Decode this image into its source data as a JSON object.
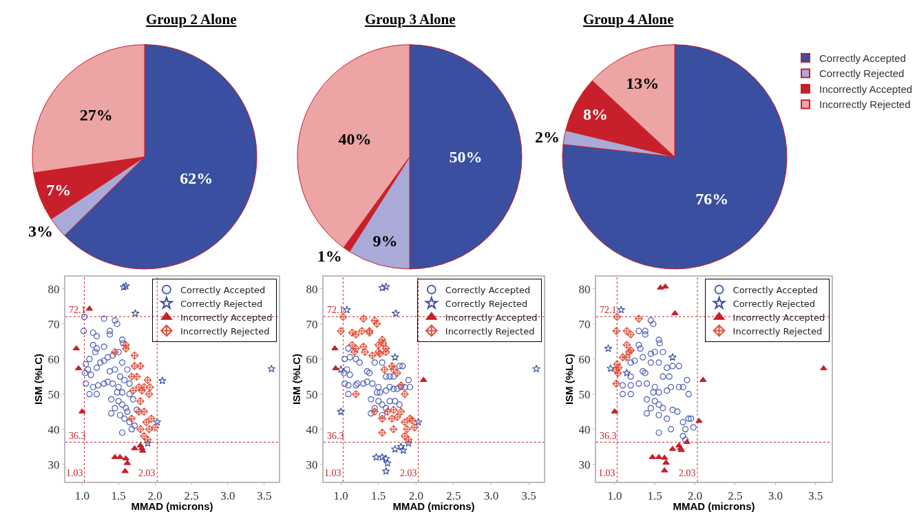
{
  "chart_data": [
    {
      "type": "pie",
      "title": "Group 2 Alone",
      "categories": [
        null,
        null,
        null,
        null
      ],
      "values": [
        62,
        3,
        7,
        27
      ],
      "colors": [
        "#3a4fa0",
        "#a9aad8",
        "#c8202a",
        "#eca4a4"
      ],
      "value_labels": [
        "62%",
        "3%",
        "7%",
        "27%"
      ]
    },
    {
      "type": "pie",
      "title": "Group 3 Alone",
      "categories": [
        null,
        null,
        null,
        null
      ],
      "values": [
        50,
        9,
        1,
        40
      ],
      "colors": [
        "#3a4fa0",
        "#a9aad8",
        "#c8202a",
        "#eca4a4"
      ],
      "value_labels": [
        "50%",
        "9%",
        "1%",
        "40%"
      ]
    },
    {
      "type": "pie",
      "title": "Group 4 Alone",
      "categories": [
        "Correctly Accepted",
        "Correctly Rejected",
        "Incorrectly Accepted",
        "Incorrectly Rejected"
      ],
      "values": [
        76,
        2,
        8,
        13
      ],
      "colors": [
        "#3a4fa0",
        "#a9aad8",
        "#c8202a",
        "#eca4a4"
      ],
      "value_labels": [
        "76%",
        "2%",
        "8%",
        "13%"
      ],
      "legend": "right"
    },
    {
      "type": "scatter",
      "xlabel": "MMAD (microns)",
      "ylabel": "ISM (%LC)",
      "xlim": [
        0.77,
        3.7
      ],
      "ylim": [
        25,
        83.5
      ],
      "xticks": [
        {
          "value": 1,
          "label": "1.0"
        },
        1.5,
        {
          "value": 2,
          "label": "2.0"
        },
        2.5,
        {
          "value": 3,
          "label": "3.0"
        },
        3.5
      ],
      "yticks": [
        30,
        40,
        50,
        60,
        70,
        80
      ],
      "legend": "top right",
      "grid": false,
      "ref_lines": [
        {
          "axis": "y",
          "value": 72.1,
          "label": "72.1",
          "color": "#c8202a",
          "line_style": "dotted"
        },
        {
          "axis": "y",
          "value": 36.3,
          "label": "36.3",
          "color": "#c8202a",
          "line_style": "dotted"
        },
        {
          "axis": "x",
          "value": 1.03,
          "label": "1.03",
          "color": "#c8202a",
          "line_style": "dotted"
        },
        {
          "axis": "x",
          "value": 2.03,
          "label": "2.03",
          "color": "#c8202a",
          "line_style": "dotted"
        }
      ],
      "series": [
        {
          "name": "Correctly Accepted",
          "color": "#4a5cb8",
          "marker": "circle",
          "x": [
            1.03,
            1.3,
            1.45,
            1.48,
            1.02,
            1.15,
            1.38,
            1.38,
            1.2,
            1.15,
            1.2,
            1.3,
            1.18,
            1.55,
            1.56,
            1.5,
            1.42,
            1.35,
            1.3,
            1.1,
            1.05,
            1.08,
            1.04,
            1.12,
            1.2,
            1.25,
            1.38,
            1.45,
            1.55,
            1.62,
            1.52,
            1.58,
            1.3,
            1.22,
            1.15,
            1.05,
            1.1,
            1.2,
            1.35,
            1.42,
            1.5,
            1.48,
            1.55,
            1.65,
            1.65,
            1.4,
            1.5,
            1.55,
            1.6,
            1.45,
            1.4,
            1.52,
            1.58,
            1.62,
            1.55,
            1.68,
            1.65,
            1.72,
            1.7,
            1.75
          ],
          "values": [
            72,
            71.5,
            71,
            70,
            68,
            67.5,
            68,
            67,
            66.5,
            64,
            63,
            63.5,
            62,
            65.5,
            64.5,
            62,
            61,
            60.5,
            59.5,
            60,
            58.5,
            57,
            56,
            55.5,
            57.5,
            59,
            56.5,
            57,
            59,
            57,
            55,
            54,
            53,
            52.5,
            52,
            53,
            50,
            50,
            53.5,
            53,
            52,
            50.5,
            50.5,
            53,
            50,
            48.5,
            48,
            47,
            46,
            46,
            44.5,
            44,
            43,
            45,
            39,
            40,
            42,
            41,
            48.5,
            45.5
          ]
        },
        {
          "name": "Correctly Rejected",
          "color": "#3a4fa0",
          "marker": "star",
          "x": [
            1.57,
            1.6,
            1.73,
            2.1,
            3.6,
            2.03,
            1.9
          ],
          "values": [
            80.5,
            80.8,
            73,
            53.8,
            57.2,
            42,
            36
          ]
        },
        {
          "name": "Incorrectly Accepted",
          "color": "#c8202a",
          "marker": "triangle",
          "x": [
            1.1,
            0.92,
            0.95,
            1.0,
            1.45,
            1.52,
            1.6,
            1.62,
            1.59,
            1.72,
            1.8,
            1.82,
            1.83
          ],
          "values": [
            74.3,
            63,
            57.3,
            45,
            32,
            32,
            31.6,
            30.3,
            28,
            34.5,
            35.3,
            34.5,
            33.8
          ]
        },
        {
          "name": "Incorrectly Rejected",
          "color": "#e0503a",
          "marker": "diamond",
          "x": [
            1.72,
            1.8,
            1.68,
            1.75,
            1.78,
            1.82,
            1.85,
            1.9,
            1.93,
            1.92,
            1.7,
            1.8,
            1.78,
            1.85,
            1.68,
            1.88,
            1.95,
            1.92,
            1.85,
            1.9,
            2.0,
            1.6,
            1.6,
            1.45,
            1.72,
            1.8
          ],
          "values": [
            58,
            58,
            55,
            55,
            52,
            51,
            52,
            54,
            52,
            50,
            51,
            48,
            45,
            45,
            43,
            42,
            43,
            40,
            38,
            37,
            40.5,
            64,
            63,
            62,
            61,
            40
          ]
        }
      ]
    },
    {
      "type": "scatter",
      "xlabel": "MMAD (microns)",
      "ylabel": "ISM (%LC)",
      "xlim": [
        0.77,
        3.7
      ],
      "ylim": [
        25,
        83.5
      ],
      "xticks": [
        {
          "value": 1,
          "label": "1.0"
        },
        1.5,
        {
          "value": 2,
          "label": "2.0"
        },
        2.5,
        {
          "value": 3,
          "label": "3.0"
        },
        3.5
      ],
      "yticks": [
        30,
        40,
        50,
        60,
        70,
        80
      ],
      "legend": "top right",
      "grid": false,
      "ref_lines": [
        {
          "axis": "y",
          "value": 72.1,
          "label": "72.1",
          "color": "#c8202a",
          "line_style": "dotted"
        },
        {
          "axis": "y",
          "value": 36.3,
          "label": "36.3",
          "color": "#c8202a",
          "line_style": "dotted"
        },
        {
          "axis": "x",
          "value": 1.03,
          "label": "1.03",
          "color": "#c8202a",
          "line_style": "dotted"
        },
        {
          "axis": "x",
          "value": 2.03,
          "label": "2.03",
          "color": "#c8202a",
          "line_style": "dotted"
        }
      ],
      "series": [
        {
          "name": "Correctly Accepted",
          "color": "#4a5cb8",
          "marker": "circle",
          "x": [
            1.1,
            1.05,
            1.12,
            1.2,
            1.25,
            1.04,
            1.08,
            1.12,
            1.35,
            1.38,
            1.45,
            1.55,
            1.05,
            1.1,
            1.2,
            1.22,
            1.3,
            1.35,
            1.42,
            1.5,
            1.1,
            1.4,
            1.48,
            1.52,
            1.6,
            1.65,
            1.7,
            1.75,
            1.8,
            1.85,
            1.9,
            1.92,
            1.82,
            1.78,
            1.65,
            1.7,
            1.5,
            1.55,
            1.6,
            1.45,
            1.4,
            1.55,
            1.65,
            1.72,
            1.78,
            1.6
          ],
          "values": [
            63,
            60,
            60.5,
            60,
            59,
            56,
            57,
            55.5,
            56.5,
            56,
            59,
            59,
            53,
            52.5,
            52.5,
            53,
            53,
            53.5,
            53,
            52,
            50,
            48.5,
            50.5,
            50.5,
            51,
            52,
            51.5,
            51.5,
            52,
            52,
            54,
            52,
            58,
            58,
            55,
            55,
            48,
            47,
            46,
            46,
            44.5,
            44,
            48,
            48,
            47,
            55
          ]
        },
        {
          "name": "Correctly Rejected",
          "color": "#3a4fa0",
          "marker": "star",
          "x": [
            1.55,
            1.6,
            1.73,
            1.72,
            3.6,
            2.03,
            1.9,
            1.47,
            1.55,
            1.6,
            1.62,
            1.6,
            1.72,
            1.8,
            1.83,
            1.0,
            1.08,
            1.0
          ],
          "values": [
            80.3,
            80.6,
            73,
            60.5,
            57.2,
            42,
            36,
            32,
            32,
            31.6,
            30.3,
            28,
            34.3,
            35,
            34,
            45,
            74,
            57
          ]
        },
        {
          "name": "Incorrectly Accepted",
          "color": "#c8202a",
          "marker": "triangle",
          "x": [
            0.92,
            0.93,
            2.1
          ],
          "values": [
            63,
            57.3,
            54
          ]
        },
        {
          "name": "Incorrectly Rejected",
          "color": "#e0503a",
          "marker": "diamond",
          "x": [
            1.03,
            1.0,
            1.3,
            1.45,
            1.48,
            1.15,
            1.2,
            1.28,
            1.38,
            1.38,
            1.15,
            1.2,
            1.18,
            1.3,
            1.32,
            1.42,
            1.5,
            1.52,
            1.55,
            1.56,
            1.6,
            1.6,
            1.5,
            1.68,
            1.7,
            1.58,
            1.75,
            1.2,
            1.8,
            1.85,
            1.62,
            1.55,
            1.68,
            1.75,
            1.7,
            1.8,
            1.85,
            1.92,
            1.95,
            1.88,
            1.98,
            1.85,
            1.9,
            1.55,
            1.7,
            1.45
          ],
          "values": [
            72,
            68,
            71.5,
            71,
            70,
            67.5,
            67,
            68,
            68,
            67.5,
            64,
            63,
            62,
            63.5,
            62,
            61,
            62,
            61.5,
            65.5,
            64.5,
            63,
            62,
            64,
            58,
            57,
            57,
            56,
            50,
            52.5,
            50,
            45,
            43,
            43,
            43.5,
            45.5,
            45,
            42,
            43,
            42.5,
            40,
            40.5,
            38,
            37,
            39,
            40,
            45
          ]
        }
      ]
    },
    {
      "type": "scatter",
      "xlabel": "MMAD (microns)",
      "ylabel": "ISM (%LC)",
      "xlim": [
        0.77,
        3.7
      ],
      "ylim": [
        25,
        83.5
      ],
      "xticks": [
        {
          "value": 1,
          "label": "1.0"
        },
        1.5,
        {
          "value": 2,
          "label": "2.0"
        },
        2.5,
        {
          "value": 3,
          "label": "3.0"
        },
        3.5
      ],
      "yticks": [
        30,
        40,
        50,
        60,
        70,
        80
      ],
      "legend": "top right",
      "grid": false,
      "ref_lines": [
        {
          "axis": "y",
          "value": 72.1,
          "label": "72.1",
          "color": "#c8202a",
          "line_style": "dotted"
        },
        {
          "axis": "y",
          "value": 36.3,
          "label": "36.3",
          "color": "#c8202a",
          "line_style": "dotted"
        },
        {
          "axis": "x",
          "value": 1.03,
          "label": "1.03",
          "color": "#c8202a",
          "line_style": "dotted"
        },
        {
          "axis": "x",
          "value": 2.03,
          "label": "2.03",
          "color": "#c8202a",
          "line_style": "dotted"
        }
      ],
      "series": [
        {
          "name": "Correctly Accepted",
          "color": "#4a5cb8",
          "marker": "circle",
          "x": [
            1.45,
            1.48,
            1.3,
            1.38,
            1.38,
            1.55,
            1.56,
            1.3,
            1.32,
            1.5,
            1.45,
            1.6,
            1.35,
            1.25,
            1.2,
            1.45,
            1.55,
            1.65,
            1.72,
            1.8,
            1.35,
            1.38,
            1.2,
            1.1,
            1.2,
            1.3,
            1.4,
            1.5,
            1.1,
            1.2,
            1.48,
            1.55,
            1.65,
            1.7,
            1.8,
            1.85,
            1.9,
            1.92,
            1.68,
            1.6,
            1.4,
            1.5,
            1.55,
            1.6,
            1.45,
            1.4,
            1.55,
            1.65,
            1.72,
            1.78,
            1.92,
            1.95,
            1.85,
            1.88,
            1.98,
            1.85,
            1.88,
            1.55,
            1.7
          ],
          "values": [
            71,
            70,
            68,
            68,
            67,
            65.5,
            64.5,
            64,
            63,
            62,
            61.5,
            62,
            60.5,
            59.5,
            59,
            59,
            59,
            57.5,
            58,
            58,
            56.5,
            56,
            55,
            52.5,
            52.5,
            53,
            53,
            52,
            50,
            50,
            50.5,
            50.5,
            51,
            52,
            52,
            52,
            54,
            50,
            55,
            55,
            48.5,
            48,
            47,
            46,
            46,
            44.5,
            44,
            43,
            45.5,
            45,
            43,
            43,
            42,
            40,
            40.5,
            38,
            37,
            39,
            40
          ]
        },
        {
          "name": "Correctly Rejected",
          "color": "#3a4fa0",
          "marker": "star",
          "x": [
            1.08,
            0.92,
            0.95,
            1.72,
            1.15
          ],
          "values": [
            74,
            63,
            57.3,
            60.5,
            56
          ]
        },
        {
          "name": "Incorrectly Accepted",
          "color": "#c8202a",
          "marker": "triangle",
          "x": [
            1.57,
            1.63,
            1.75,
            2.1,
            3.6,
            1.0,
            2.05,
            1.9,
            1.8,
            1.82,
            1.83,
            1.72,
            1.47,
            1.55,
            1.62,
            1.64,
            1.62
          ],
          "values": [
            80.3,
            80.6,
            73,
            54,
            57.3,
            45,
            42.3,
            36.3,
            35.3,
            34.5,
            34,
            34.3,
            32,
            32,
            31.8,
            30.4,
            28.2
          ]
        },
        {
          "name": "Incorrectly Rejected",
          "color": "#e0503a",
          "marker": "diamond",
          "x": [
            1.03,
            1.3,
            1.02,
            1.15,
            1.2,
            1.15,
            1.17,
            1.2,
            1.18,
            1.1,
            1.15,
            1.03,
            1.05,
            1.02,
            1.04,
            1.02
          ],
          "values": [
            72,
            71.5,
            68,
            68,
            67,
            64,
            null,
            62.5,
            62,
            60.5,
            60.5,
            58.5,
            57.5,
            57,
            56,
            53
          ]
        }
      ]
    }
  ]
}
